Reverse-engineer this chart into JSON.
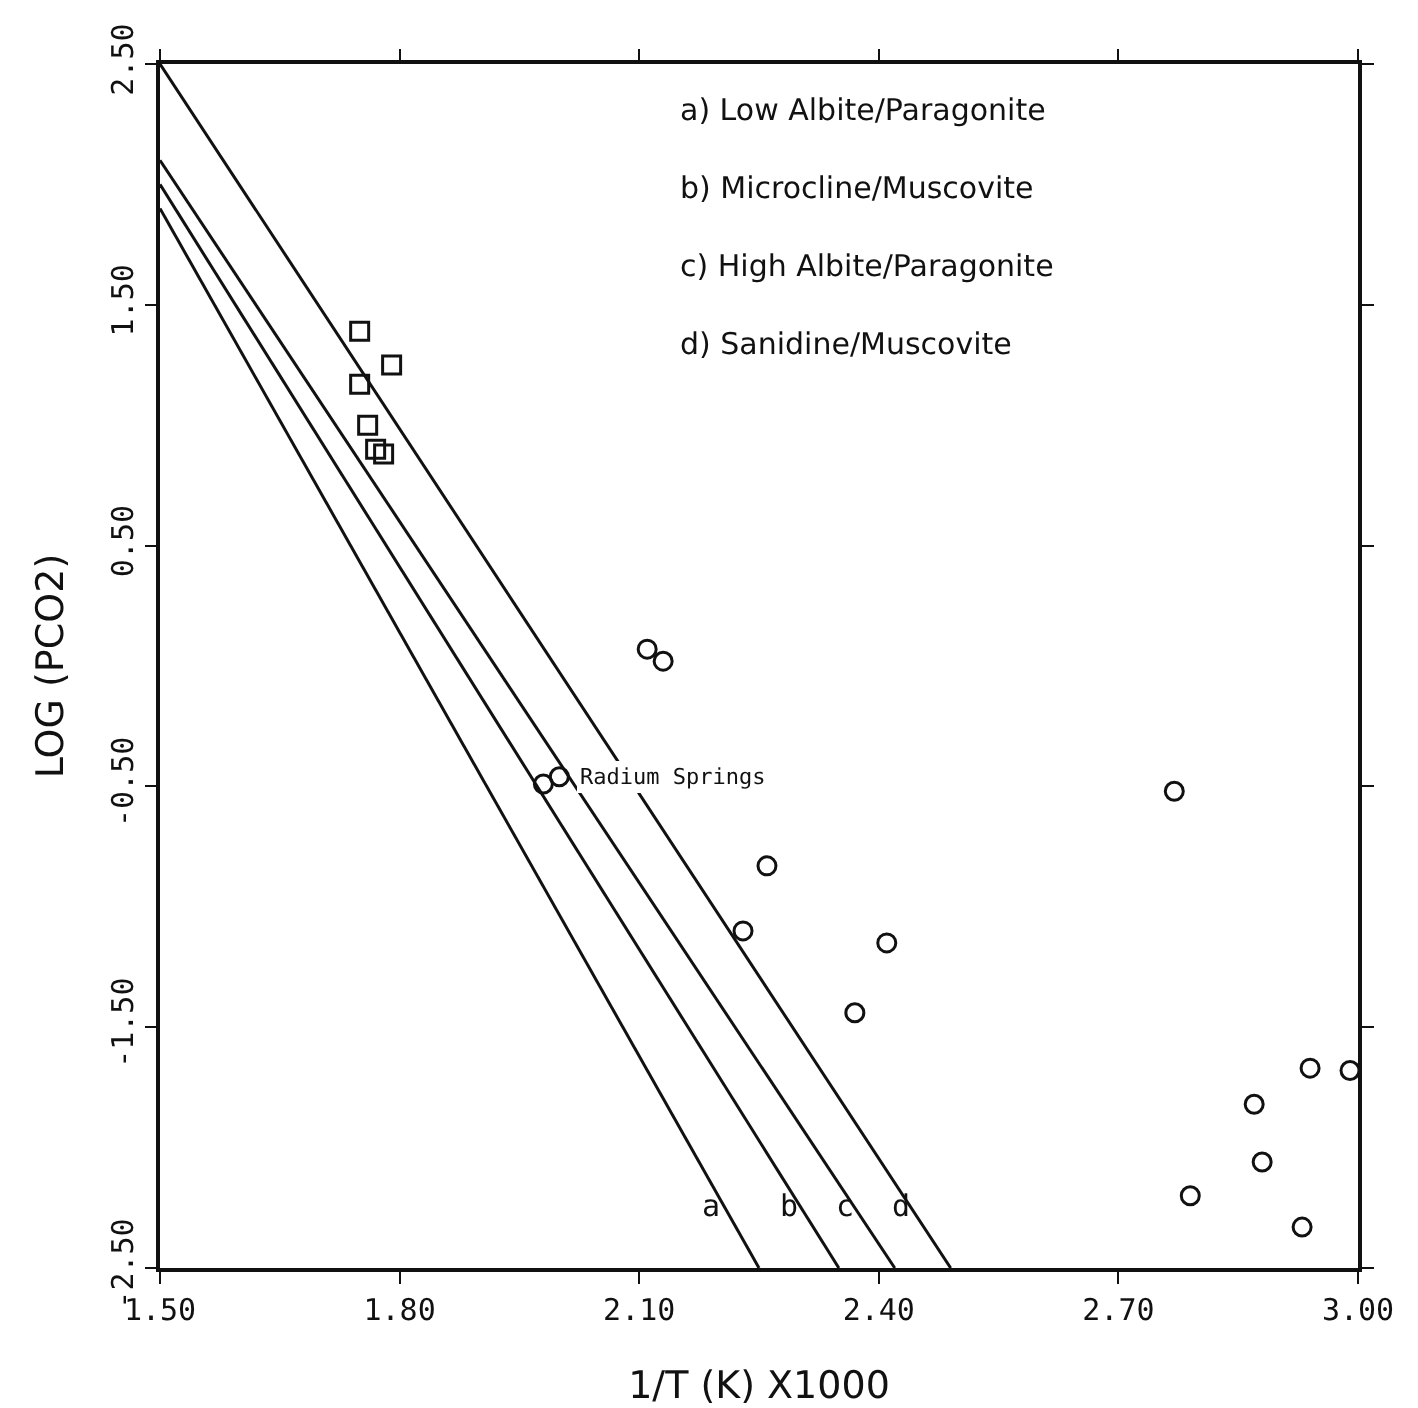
{
  "chart_data": {
    "type": "scatter",
    "xlabel": "1/T (K) X1000",
    "ylabel": "LOG (PCO2)",
    "xlim": [
      1.5,
      3.0
    ],
    "ylim": [
      -2.5,
      2.5
    ],
    "xticks": [
      {
        "value": 1.5,
        "label": "1.50"
      },
      {
        "value": 1.8,
        "label": "1.80"
      },
      {
        "value": 2.1,
        "label": "2.10"
      },
      {
        "value": 2.4,
        "label": "2.40"
      },
      {
        "value": 2.7,
        "label": "2.70"
      },
      {
        "value": 3.0,
        "label": "3.00"
      }
    ],
    "yticks": [
      {
        "value": -2.5,
        "label": "-2.50"
      },
      {
        "value": -1.5,
        "label": "-1.50"
      },
      {
        "value": -0.5,
        "label": "-0.50"
      },
      {
        "value": 0.5,
        "label": "0.50"
      },
      {
        "value": 1.5,
        "label": "1.50"
      },
      {
        "value": 2.5,
        "label": "2.50"
      }
    ],
    "grid": false,
    "series": [
      {
        "name": "a",
        "type": "line",
        "color": "#111111",
        "line_style": "solid",
        "x": [
          1.5,
          2.25
        ],
        "values": [
          1.9,
          -2.5
        ]
      },
      {
        "name": "b",
        "type": "line",
        "color": "#111111",
        "line_style": "solid",
        "x": [
          1.5,
          2.35
        ],
        "values": [
          2.0,
          -2.5
        ]
      },
      {
        "name": "c",
        "type": "line",
        "color": "#111111",
        "line_style": "solid",
        "x": [
          1.5,
          2.42
        ],
        "values": [
          2.1,
          -2.5
        ]
      },
      {
        "name": "d",
        "type": "line",
        "color": "#111111",
        "line_style": "solid",
        "x": [
          1.5,
          2.49
        ],
        "values": [
          2.5,
          -2.5
        ]
      },
      {
        "color": "#111111",
        "marker": "square",
        "x": [
          1.75,
          1.79,
          1.75,
          1.76,
          1.77,
          1.78
        ],
        "values": [
          1.39,
          1.25,
          1.17,
          1.0,
          0.9,
          0.88
        ]
      },
      {
        "color": "#111111",
        "marker": "circle",
        "x": [
          2.11,
          2.13,
          1.98,
          2.0,
          2.26,
          2.23,
          2.41,
          2.37,
          2.77,
          2.79,
          2.87,
          2.88,
          2.94,
          2.93,
          2.99
        ],
        "values": [
          0.07,
          0.02,
          -0.49,
          -0.46,
          -0.83,
          -1.1,
          -1.15,
          -1.44,
          -0.52,
          -2.2,
          -1.82,
          -2.06,
          -1.67,
          -2.33,
          -1.68
        ]
      }
    ],
    "annotations": [
      {
        "text": "Radium Springs",
        "x": 2.0,
        "y": -0.46
      },
      "a) Low Albite/Paragonite",
      "b) Microcline/Muscovite",
      "c) High Albite/Paragonite",
      "d) Sanidine/Muscovite"
    ]
  }
}
